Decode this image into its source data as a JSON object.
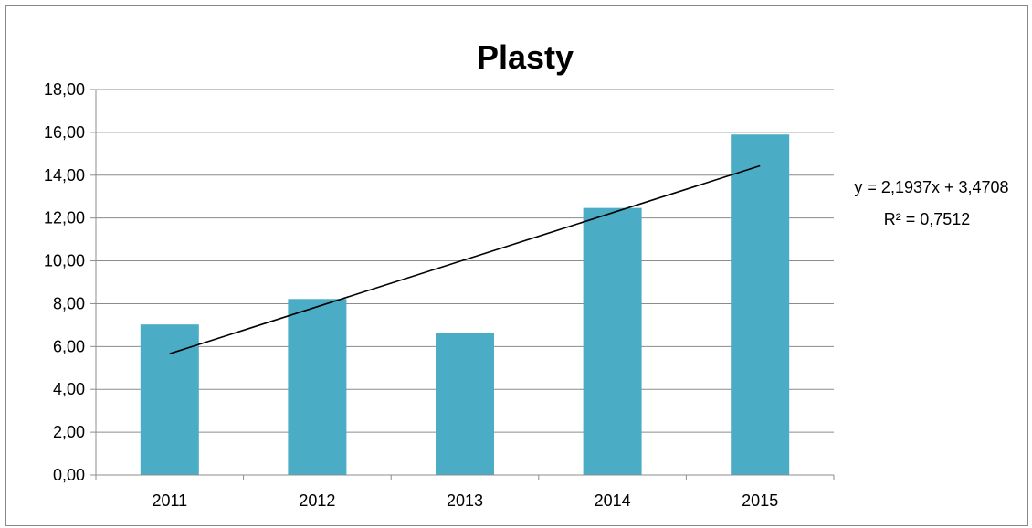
{
  "chart_data": {
    "type": "bar",
    "title": "Plasty",
    "categories": [
      "2011",
      "2012",
      "2013",
      "2014",
      "2015"
    ],
    "series": [
      {
        "values": [
          7.03,
          8.22,
          6.63,
          12.47,
          15.9
        ]
      }
    ],
    "ylim": [
      0,
      18
    ],
    "yticks": [
      "0,00",
      "2,00",
      "4,00",
      "6,00",
      "8,00",
      "10,00",
      "12,00",
      "14,00",
      "16,00",
      "18,00"
    ],
    "grid": true,
    "trendline": {
      "type": "linear",
      "slope": 2.1937,
      "intercept": 3.4708,
      "equation_label": "y = 2,1937x + 3,4708",
      "r2_label": "R² = 0,7512"
    },
    "colors": {
      "bar": "#4bacc6",
      "grid": "#8c8c8c",
      "trendline": "#000000"
    }
  }
}
